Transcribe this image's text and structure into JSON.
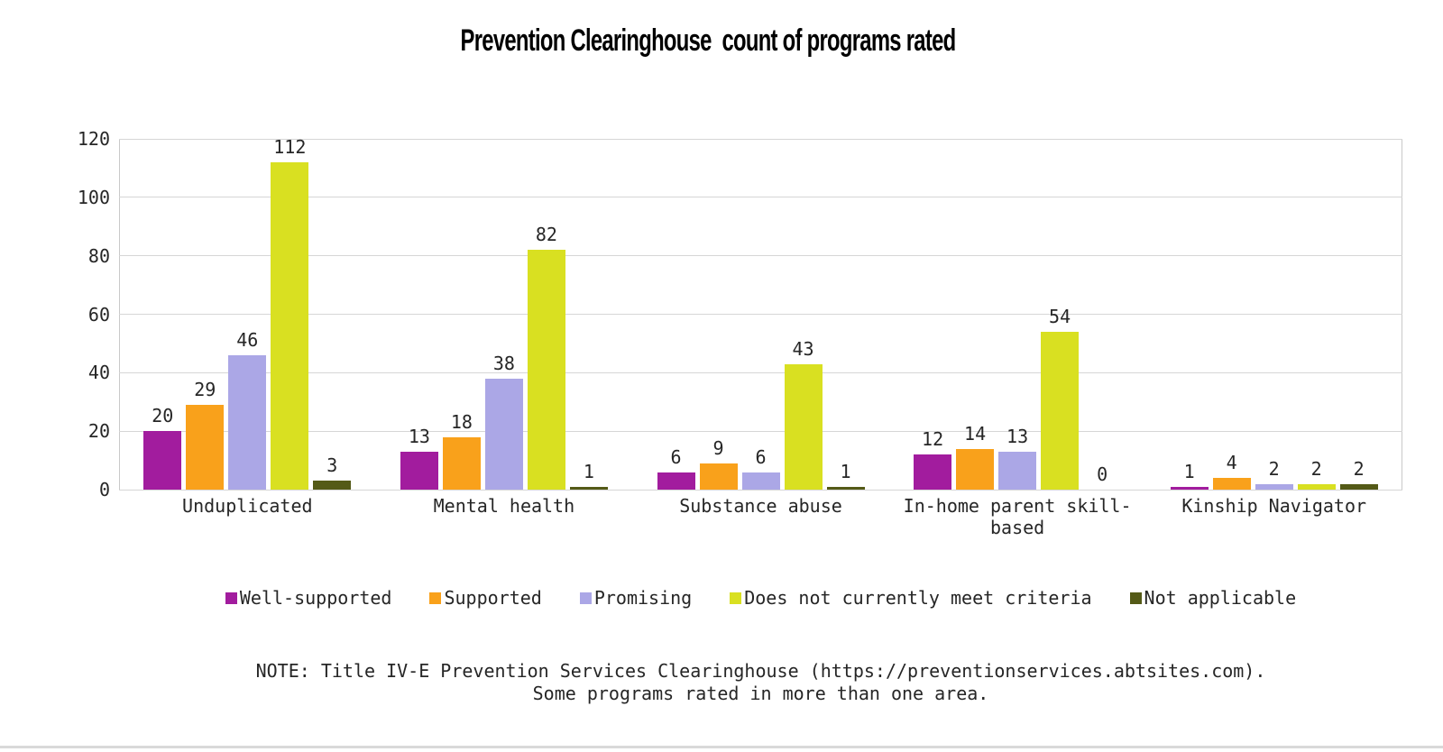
{
  "title": "Prevention Clearinghouse  count of programs rated",
  "chart_data": {
    "type": "bar",
    "title": "Prevention Clearinghouse  count of programs rated",
    "categories": [
      "Unduplicated",
      "Mental health",
      "Substance abuse",
      "In-home parent skill-based",
      "Kinship Navigator"
    ],
    "series": [
      {
        "name": "Well-supported",
        "color": "#a21c9e",
        "values": [
          20,
          13,
          6,
          12,
          1
        ]
      },
      {
        "name": "Supported",
        "color": "#f9a11b",
        "values": [
          29,
          18,
          9,
          14,
          4
        ]
      },
      {
        "name": "Promising",
        "color": "#aba7e6",
        "values": [
          46,
          38,
          6,
          13,
          2
        ]
      },
      {
        "name": "Does not currently meet criteria",
        "color": "#d9e021",
        "values": [
          112,
          82,
          43,
          54,
          2
        ]
      },
      {
        "name": "Not applicable",
        "color": "#545a17",
        "values": [
          3,
          1,
          1,
          0,
          2
        ]
      }
    ],
    "xlabel": "",
    "ylabel": "",
    "ylim": [
      0,
      120
    ],
    "yticks": [
      0,
      20,
      40,
      60,
      80,
      100,
      120
    ],
    "grid": true,
    "legend_position": "bottom"
  },
  "note": {
    "line1": "NOTE: Title IV-E Prevention Services Clearinghouse (https://preventionservices.abtsites.com).",
    "line2": "Some programs rated in more than one area."
  }
}
